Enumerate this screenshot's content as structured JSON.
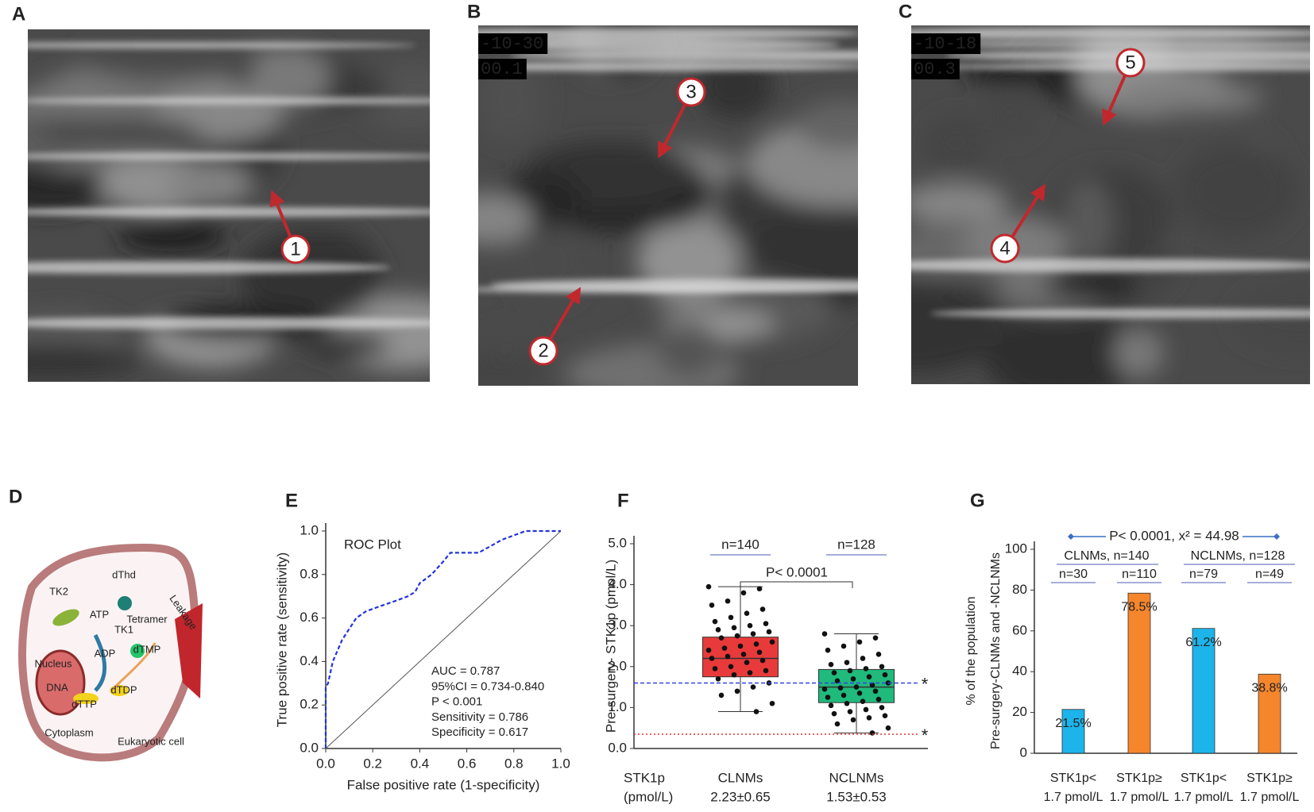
{
  "panels": [
    {
      "letter": "A",
      "overlays": [],
      "markers": [
        "1"
      ]
    },
    {
      "letter": "B",
      "overlays": [
        "-10-30",
        "00.1"
      ],
      "markers": [
        "3",
        "2"
      ]
    },
    {
      "letter": "C",
      "overlays": [
        "-10-18",
        "00.3"
      ],
      "markers": [
        "5",
        "4"
      ]
    },
    {
      "letter": "D",
      "labels": [
        "TK2",
        "dThd",
        "ATP",
        "Tetramer",
        "TK1",
        "dTMP",
        "ADP",
        "Nucleus",
        "DNA",
        "dTTP",
        "dTDP",
        "Cytoplasm",
        "Eukaryotic cell",
        "Leakage"
      ]
    }
  ],
  "chart_data": [
    {
      "type": "line",
      "panel": "E",
      "title": "ROC Plot",
      "xlabel": "False  positive rate (1-specificity)",
      "ylabel": "True  positive rate (sensitivity)",
      "xlim": [
        0,
        1
      ],
      "ylim": [
        0,
        1
      ],
      "xticks": [
        {
          "value": 0,
          "label": "0.0"
        },
        {
          "value": 0.2,
          "label": "0.2"
        },
        {
          "value": 0.4,
          "label": "0.4"
        },
        {
          "value": 0.6,
          "label": "0.6"
        },
        {
          "value": 0.8,
          "label": "0.8"
        },
        {
          "value": 1,
          "label": "1.0"
        }
      ],
      "yticks": [
        {
          "value": 0,
          "label": "0.0"
        },
        {
          "value": 0.2,
          "label": "0.2"
        },
        {
          "value": 0.4,
          "label": "0.4"
        },
        {
          "value": 0.6,
          "label": "0.6"
        },
        {
          "value": 0.8,
          "label": "0.8"
        },
        {
          "value": 1,
          "label": "1.0"
        }
      ],
      "annotations": [
        "AUC = 0.787",
        "95%CI = 0.734-0.840",
        "P < 0.001",
        "Sensitivity = 0.786",
        "Specificity = 0.617"
      ],
      "series": [
        {
          "color": "#2233dd",
          "dash": true,
          "x": [
            0,
            0,
            0.01,
            0.02,
            0.03,
            0.05,
            0.07,
            0.1,
            0.13,
            0.17,
            0.22,
            0.3,
            0.35,
            0.38,
            0.4,
            0.45,
            0.5,
            0.53,
            0.6,
            0.65,
            0.7,
            0.75,
            0.8,
            0.85,
            1
          ],
          "values": [
            0,
            0.28,
            0.3,
            0.35,
            0.4,
            0.45,
            0.5,
            0.55,
            0.6,
            0.63,
            0.65,
            0.68,
            0.7,
            0.72,
            0.76,
            0.8,
            0.86,
            0.9,
            0.9,
            0.9,
            0.93,
            0.96,
            0.98,
            1,
            1
          ]
        },
        {
          "color": "#555555",
          "dash": false,
          "x": [
            0,
            1
          ],
          "values": [
            0,
            1
          ]
        }
      ]
    },
    {
      "type": "box",
      "panel": "F",
      "ylabel": "Pre-surgery- STK1p (pmol/L)",
      "ylim": [
        0,
        5
      ],
      "yticks": [
        {
          "value": 0,
          "label": "0.0"
        },
        {
          "value": 1,
          "label": "1.0"
        },
        {
          "value": 2,
          "label": "2.0"
        },
        {
          "value": 3,
          "label": "3.0"
        },
        {
          "value": 4,
          "label": "4.0"
        },
        {
          "value": 5,
          "label": "5.0"
        }
      ],
      "row_label": [
        "STK1p",
        "(pmol/L)"
      ],
      "categories": [
        "CLNMs",
        "NCLNMs"
      ],
      "category_sublabels": [
        "2.23±0.65",
        "1.53±0.53"
      ],
      "n_labels": [
        "n=140",
        "n=128"
      ],
      "p_label": "P< 0.0001",
      "series": [
        {
          "color": "#e83a3a",
          "box": {
            "min": 0.9,
            "q1": 1.75,
            "median": 2.2,
            "q3": 2.72,
            "max": 3.95
          },
          "points": [
            3.95,
            3.9,
            3.8,
            3.6,
            3.5,
            3.4,
            3.3,
            3.2,
            3.1,
            3.05,
            3.0,
            2.95,
            2.9,
            2.85,
            2.8,
            2.75,
            2.7,
            2.6,
            2.55,
            2.5,
            2.45,
            2.4,
            2.35,
            2.3,
            2.25,
            2.2,
            2.15,
            2.1,
            2.0,
            1.95,
            1.9,
            1.85,
            1.8,
            1.7,
            1.6,
            1.5,
            1.4,
            1.3,
            1.1,
            0.9
          ]
        },
        {
          "color": "#1fba7c",
          "box": {
            "min": 0.38,
            "q1": 1.12,
            "median": 1.5,
            "q3": 1.93,
            "max": 2.8
          },
          "points": [
            2.8,
            2.7,
            2.6,
            2.5,
            2.4,
            2.3,
            2.2,
            2.1,
            2.05,
            2.0,
            1.95,
            1.9,
            1.85,
            1.8,
            1.75,
            1.7,
            1.65,
            1.6,
            1.55,
            1.5,
            1.48,
            1.45,
            1.4,
            1.35,
            1.3,
            1.25,
            1.2,
            1.15,
            1.1,
            1.05,
            1.0,
            0.95,
            0.9,
            0.85,
            0.8,
            0.75,
            0.7,
            0.6,
            0.5,
            0.38
          ]
        }
      ],
      "reference_lines": [
        {
          "value": 1.6,
          "color": "#3344dd",
          "style": "dashed",
          "label": "*",
          "label_color": "#3344dd"
        },
        {
          "value": 0.35,
          "color": "#e03030",
          "style": "dotted",
          "label": "*",
          "label_color": "#e07020"
        }
      ]
    },
    {
      "type": "bar",
      "panel": "G",
      "ylabel": [
        "% of the population",
        "Pre-surgery-CLNMs and -NCLNMs"
      ],
      "ylim": [
        0,
        100
      ],
      "yticks": [
        0,
        20,
        40,
        60,
        80,
        100
      ],
      "categories": [
        [
          "STK1p<",
          "1.7 pmol/L"
        ],
        [
          "STK1p≥",
          "1.7 pmol/L"
        ],
        [
          "STK1p<",
          "1.7 pmol/L"
        ],
        [
          "STK1p≥",
          "1.7 pmol/L"
        ]
      ],
      "values": [
        21.5,
        78.5,
        61.2,
        38.8
      ],
      "value_labels": [
        "21.5%",
        "78.5%",
        "61.2%",
        "38.8%"
      ],
      "colors": [
        "#1cb4ea",
        "#f5862c",
        "#1cb4ea",
        "#f5862c"
      ],
      "groups": [
        "CLNMs, n=140",
        "NCLNMs, n=128"
      ],
      "n_labels": [
        "n=30",
        "n=110",
        "n=79",
        "n=49"
      ],
      "p_label": "P< 0.0001, x² = 44.98"
    }
  ]
}
